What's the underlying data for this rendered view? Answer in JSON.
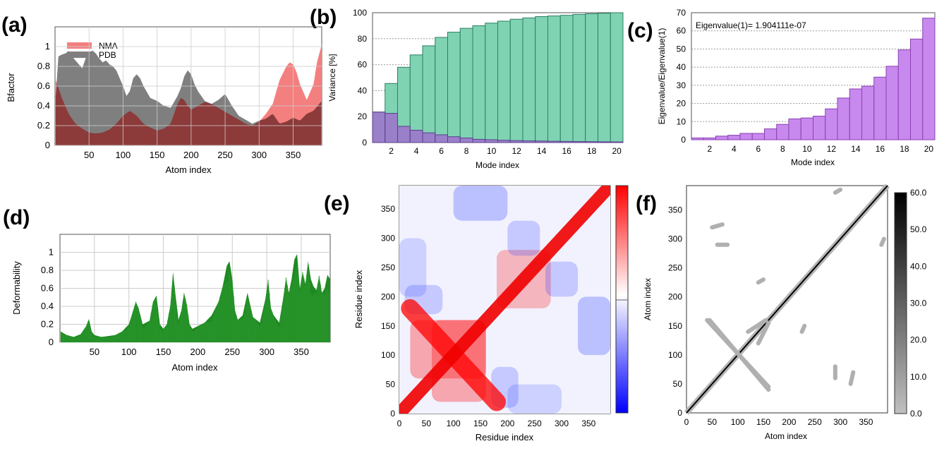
{
  "panels": {
    "a": "(a)",
    "b": "(b)",
    "c": "(c)",
    "d": "(d)",
    "e": "(e)",
    "f": "(f)"
  },
  "colors": {
    "nma": "#f47f7f",
    "pdb": "#7f7f7f",
    "overlap": "#8c3a3a",
    "teal": "#7fd3b3",
    "purple": "#9a7fc9",
    "violet": "#c889ee",
    "green": "#1f8a22",
    "grid": "#cccccc"
  },
  "chart_data": [
    {
      "id": "a",
      "type": "area",
      "xlabel": "Atom index",
      "ylabel": "Bfactor",
      "xlim": [
        0,
        392
      ],
      "ylim": [
        0,
        1.2
      ],
      "xticks": [
        "50",
        "100",
        "150",
        "200",
        "250",
        "300",
        "350"
      ],
      "yticks": [
        "0",
        "0.2",
        "0.4",
        "0.6",
        "0.8",
        "1"
      ],
      "legend": "top-left",
      "grid": true,
      "series": [
        {
          "name": "NMA",
          "x": [
            1,
            10,
            20,
            30,
            40,
            50,
            60,
            70,
            80,
            90,
            100,
            110,
            120,
            130,
            140,
            150,
            160,
            170,
            180,
            185,
            190,
            195,
            200,
            210,
            220,
            230,
            240,
            250,
            260,
            270,
            280,
            290,
            300,
            310,
            320,
            330,
            340,
            345,
            350,
            355,
            360,
            370,
            380,
            385,
            392
          ],
          "y": [
            0.66,
            0.48,
            0.32,
            0.22,
            0.17,
            0.13,
            0.12,
            0.13,
            0.16,
            0.22,
            0.3,
            0.35,
            0.3,
            0.22,
            0.18,
            0.15,
            0.17,
            0.22,
            0.42,
            0.48,
            0.46,
            0.4,
            0.36,
            0.4,
            0.44,
            0.42,
            0.38,
            0.34,
            0.3,
            0.26,
            0.22,
            0.2,
            0.24,
            0.32,
            0.42,
            0.66,
            0.8,
            0.84,
            0.82,
            0.74,
            0.62,
            0.46,
            0.62,
            0.84,
            1.02
          ]
        },
        {
          "name": "PDB",
          "x": [
            1,
            5,
            10,
            15,
            20,
            25,
            30,
            35,
            40,
            45,
            50,
            55,
            60,
            65,
            70,
            75,
            80,
            85,
            90,
            95,
            100,
            105,
            110,
            115,
            120,
            125,
            130,
            140,
            150,
            160,
            170,
            175,
            180,
            185,
            190,
            195,
            200,
            205,
            210,
            220,
            230,
            240,
            250,
            260,
            270,
            280,
            290,
            300,
            310,
            320,
            330,
            340,
            350,
            360,
            370,
            380,
            392
          ],
          "y": [
            0.5,
            0.9,
            0.92,
            0.93,
            0.95,
            0.9,
            0.86,
            0.82,
            0.78,
            0.88,
            0.94,
            0.96,
            0.93,
            0.88,
            0.84,
            0.86,
            0.82,
            0.8,
            0.76,
            0.68,
            0.6,
            0.5,
            0.55,
            0.68,
            0.72,
            0.68,
            0.6,
            0.48,
            0.45,
            0.4,
            0.38,
            0.44,
            0.5,
            0.58,
            0.7,
            0.76,
            0.72,
            0.62,
            0.55,
            0.45,
            0.42,
            0.46,
            0.52,
            0.4,
            0.3,
            0.26,
            0.22,
            0.25,
            0.27,
            0.32,
            0.22,
            0.24,
            0.28,
            0.25,
            0.32,
            0.35,
            0.45
          ]
        }
      ]
    },
    {
      "id": "b",
      "type": "bar",
      "xlabel": "Mode index",
      "ylabel": "Variance [%]",
      "ylim": [
        0,
        100
      ],
      "xticks": [
        "2",
        "4",
        "6",
        "8",
        "10",
        "12",
        "14",
        "16",
        "18",
        "20"
      ],
      "yticks": [
        "0",
        "20",
        "40",
        "60",
        "80",
        "100"
      ],
      "categories": [
        "1",
        "2",
        "3",
        "4",
        "5",
        "6",
        "7",
        "8",
        "9",
        "10",
        "11",
        "12",
        "13",
        "14",
        "15",
        "16",
        "17",
        "18",
        "19",
        "20"
      ],
      "series": [
        {
          "values": [
            23.5,
            45.5,
            58,
            67.5,
            74.5,
            81,
            85,
            88,
            90,
            92,
            93.5,
            95,
            96,
            97,
            97.5,
            98,
            98.7,
            99.2,
            99.6,
            100
          ]
        },
        {
          "values": [
            23.5,
            22.5,
            12.5,
            9.5,
            7.5,
            6,
            4.5,
            3.5,
            2.5,
            2.2,
            1.8,
            1.5,
            1.3,
            1.2,
            1,
            0.9,
            0.8,
            0.7,
            0.6,
            0.5
          ]
        }
      ]
    },
    {
      "id": "c",
      "type": "bar",
      "xlabel": "Mode index",
      "ylabel": "Eigenvalue/Eigenvalue(1)",
      "annotation": "Eigenvalue(1)= 1.904111e-07",
      "ylim": [
        0,
        70
      ],
      "xticks": [
        "2",
        "4",
        "6",
        "8",
        "10",
        "12",
        "14",
        "16",
        "18",
        "20"
      ],
      "yticks": [
        "0",
        "10",
        "20",
        "30",
        "40",
        "50",
        "60",
        "70"
      ],
      "categories": [
        "1",
        "2",
        "3",
        "4",
        "5",
        "6",
        "7",
        "8",
        "9",
        "10",
        "11",
        "12",
        "13",
        "14",
        "15",
        "16",
        "17",
        "18",
        "19",
        "20"
      ],
      "values": [
        1,
        1,
        2,
        2.5,
        3.5,
        3.5,
        6,
        8.5,
        11.5,
        12,
        13,
        17,
        23,
        28,
        29.5,
        34.5,
        40.5,
        49.5,
        55.5,
        67
      ]
    },
    {
      "id": "d",
      "type": "bar",
      "xlabel": "Atom index",
      "ylabel": "Deformability",
      "xlim": [
        0,
        392
      ],
      "ylim": [
        0,
        1.2
      ],
      "xticks": [
        "50",
        "100",
        "150",
        "200",
        "250",
        "300",
        "350"
      ],
      "yticks": [
        "0",
        "0.2",
        "0.4",
        "0.6",
        "0.8",
        "1"
      ],
      "grid": true,
      "x": [
        1,
        10,
        20,
        30,
        38,
        42,
        46,
        50,
        60,
        70,
        80,
        90,
        100,
        106,
        110,
        114,
        120,
        130,
        135,
        140,
        145,
        150,
        155,
        160,
        164,
        168,
        172,
        176,
        180,
        184,
        188,
        192,
        200,
        210,
        220,
        230,
        236,
        242,
        246,
        250,
        254,
        258,
        265,
        272,
        280,
        290,
        298,
        302,
        306,
        310,
        318,
        324,
        328,
        332,
        336,
        340,
        344,
        348,
        352,
        356,
        360,
        364,
        368,
        372,
        376,
        380,
        384,
        388,
        392
      ],
      "y": [
        0.12,
        0.08,
        0.06,
        0.09,
        0.18,
        0.26,
        0.12,
        0.08,
        0.06,
        0.07,
        0.08,
        0.12,
        0.2,
        0.35,
        0.45,
        0.38,
        0.2,
        0.24,
        0.45,
        0.52,
        0.2,
        0.15,
        0.2,
        0.4,
        0.78,
        0.5,
        0.25,
        0.35,
        0.55,
        0.42,
        0.2,
        0.15,
        0.18,
        0.22,
        0.3,
        0.45,
        0.62,
        0.85,
        0.9,
        0.7,
        0.35,
        0.25,
        0.3,
        0.55,
        0.28,
        0.22,
        0.48,
        0.7,
        0.38,
        0.3,
        0.22,
        0.5,
        0.72,
        0.55,
        0.7,
        0.92,
        0.98,
        0.6,
        0.78,
        0.65,
        0.9,
        0.7,
        0.62,
        0.58,
        0.74,
        0.55,
        0.6,
        0.75,
        0.7
      ]
    },
    {
      "id": "e",
      "type": "heatmap",
      "xlabel": "Residue index",
      "ylabel": "Residue index",
      "xlim": [
        0,
        390
      ],
      "ylim": [
        0,
        390
      ],
      "xticks": [
        "0",
        "50",
        "100",
        "150",
        "200",
        "250",
        "300",
        "350"
      ],
      "yticks": [
        "0",
        "50",
        "100",
        "150",
        "200",
        "250",
        "300",
        "350"
      ],
      "colorbar_range": [
        -1,
        1
      ],
      "colormap": "blue-white-red",
      "features": [
        {
          "kind": "diagonal",
          "sign": 1,
          "value": 1.0
        },
        {
          "kind": "anti_block",
          "x_center": 100,
          "y_center": 100,
          "sign": 1,
          "value": 0.9
        },
        {
          "kind": "block",
          "x": [
            60,
            160
          ],
          "y": [
            20,
            160
          ],
          "sign": 1,
          "value": 0.7
        },
        {
          "kind": "block",
          "x": [
            180,
            280
          ],
          "y": [
            180,
            280
          ],
          "sign": 1,
          "value": 0.3
        },
        {
          "kind": "block",
          "x": [
            270,
            330
          ],
          "y": [
            200,
            260
          ],
          "sign": -1,
          "value": 0.5
        },
        {
          "kind": "block",
          "x": [
            330,
            390
          ],
          "y": [
            100,
            200
          ],
          "sign": -1,
          "value": 0.6
        },
        {
          "kind": "block",
          "x": [
            0,
            50
          ],
          "y": [
            200,
            300
          ],
          "sign": -1,
          "value": 0.4
        },
        {
          "kind": "block",
          "x": [
            170,
            220
          ],
          "y": [
            10,
            80
          ],
          "sign": -1,
          "value": 0.5
        }
      ]
    },
    {
      "id": "f",
      "type": "heatmap",
      "xlabel": "Atom index",
      "ylabel": "Atom index",
      "xlim": [
        0,
        392
      ],
      "ylim": [
        0,
        392
      ],
      "xticks": [
        "0",
        "50",
        "100",
        "150",
        "200",
        "250",
        "300",
        "350"
      ],
      "yticks": [
        "0",
        "50",
        "100",
        "150",
        "200",
        "250",
        "300",
        "350"
      ],
      "colorbar_range": [
        0,
        60
      ],
      "colorbar_ticks": [
        "0.0",
        "10.0",
        "20.0",
        "30.0",
        "40.0",
        "50.0",
        "60.0"
      ],
      "contact_segments": [
        {
          "x": [
            0,
            392
          ],
          "y": [
            0,
            392
          ],
          "value": 60
        },
        {
          "x": [
            40,
            160
          ],
          "y": [
            160,
            45
          ],
          "value": 5
        },
        {
          "x": [
            140,
            160
          ],
          "y": [
            120,
            155
          ],
          "value": 5
        },
        {
          "x": [
            290,
            290
          ],
          "y": [
            60,
            80
          ],
          "value": 5
        },
        {
          "x": [
            225,
            230
          ],
          "y": [
            140,
            150
          ],
          "value": 5
        },
        {
          "x": [
            50,
            70
          ],
          "y": [
            320,
            325
          ],
          "value": 5
        },
        {
          "x": [
            290,
            300
          ],
          "y": [
            380,
            385
          ],
          "value": 5
        }
      ]
    }
  ]
}
